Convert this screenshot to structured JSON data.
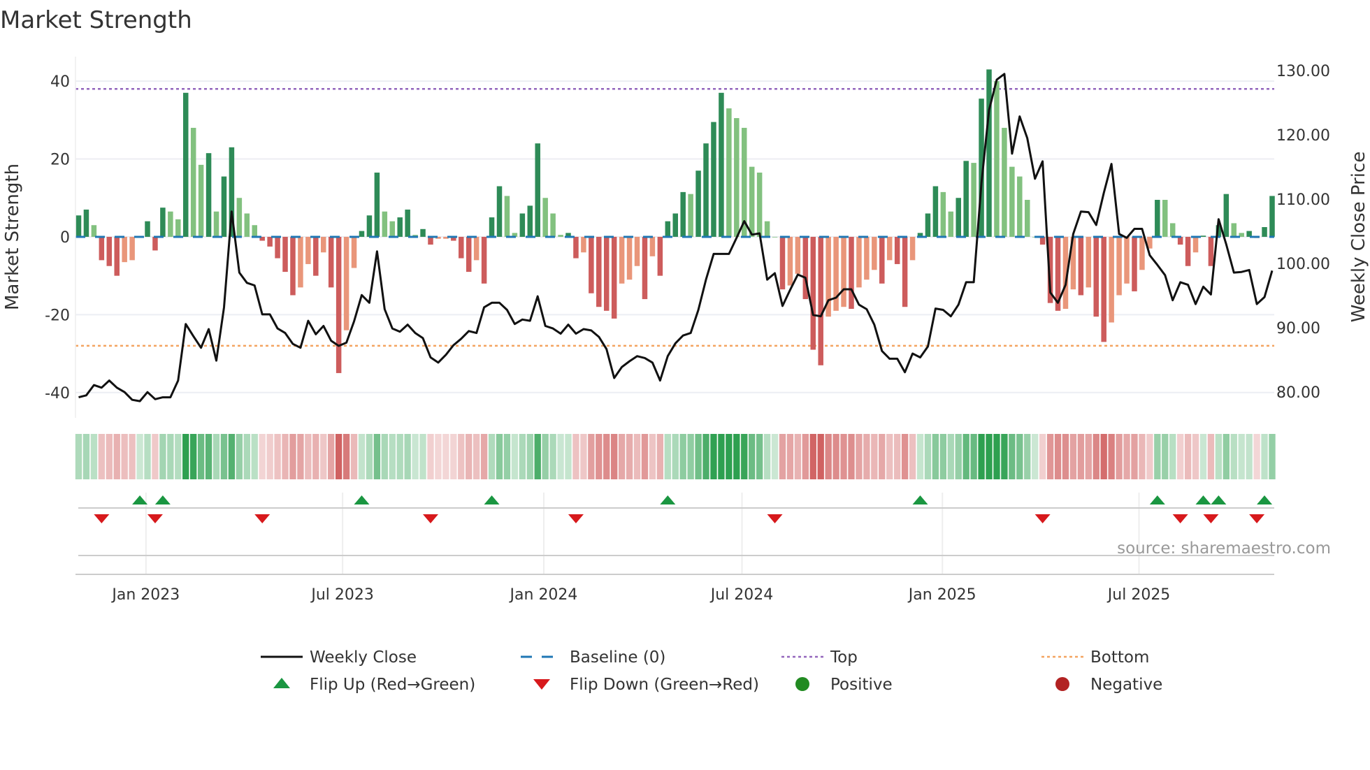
{
  "chart_data": {
    "type": "bar+line",
    "title": "Market Strength",
    "ylabel_left": "Market Strength",
    "ylabel_right": "Weekly Close Price",
    "left_ticks": [
      40,
      20,
      0,
      -20,
      -40
    ],
    "right_ticks": [
      "130.00",
      "120.00",
      "110.00",
      "100.00",
      "90.00",
      "80.00"
    ],
    "right_tick_values": [
      130,
      120,
      110,
      100,
      90,
      80
    ],
    "ylim_left": [
      -46.5,
      46.3
    ],
    "ylim_right": [
      76.0,
      132.2
    ],
    "x_ticks": [
      {
        "label": "Jan 2023",
        "week": 8.8
      },
      {
        "label": "Jul 2023",
        "week": 34.5
      },
      {
        "label": "Jan 2024",
        "week": 60.8
      },
      {
        "label": "Jul 2024",
        "week": 86.7
      },
      {
        "label": "Jan 2025",
        "week": 112.9
      },
      {
        "label": "Jul 2025",
        "week": 138.6
      }
    ],
    "top_level": 38,
    "bottom_level": -28,
    "baseline": 0,
    "strength": [
      5.5,
      7,
      3,
      -6,
      -7.5,
      -10,
      -6.5,
      -6,
      0,
      4,
      -3.5,
      7.5,
      6.5,
      4.5,
      37,
      28,
      18.5,
      21.5,
      6.5,
      15.5,
      23,
      10,
      6,
      3,
      -1,
      -2.5,
      -5.5,
      -9,
      -15,
      -13,
      -7,
      -10,
      -4,
      -13,
      -35,
      -24,
      -8,
      1.5,
      5.5,
      16.5,
      6.5,
      4,
      5,
      7,
      0.5,
      2,
      -2,
      -0.5,
      -0.5,
      -1,
      -5.5,
      -9,
      -6,
      -12,
      5,
      13,
      10.5,
      1,
      6,
      8,
      24,
      10,
      6,
      0.5,
      1,
      -5.5,
      -4,
      -14.5,
      -18,
      -19,
      -21,
      -12,
      -11,
      -7.5,
      -16,
      -5,
      -10,
      4,
      6,
      11.5,
      11,
      17,
      24,
      29.5,
      37,
      33,
      30.5,
      28,
      18,
      16.5,
      4,
      0,
      -13.5,
      -12.5,
      -9.5,
      -16,
      -29,
      -33,
      -20.5,
      -19,
      -18,
      -18.5,
      -13,
      -11,
      -8.5,
      -12,
      -6,
      -7,
      -18,
      -6,
      1,
      6,
      13,
      11.5,
      6.5,
      10,
      19.5,
      19,
      35.5,
      43,
      40,
      28,
      18,
      15.5,
      9.5,
      0,
      -2,
      -17,
      -19,
      -18.5,
      -13.5,
      -15,
      -13,
      -20.5,
      -27,
      -22,
      -15,
      -12,
      -14,
      -8.5,
      -3,
      9.5,
      9.5,
      3.5,
      -2,
      -7.5,
      -4,
      0.3,
      -7.5,
      3,
      11,
      3.5,
      1,
      1.5,
      -0.3,
      2.5,
      10.5
    ],
    "weekly_close": [
      79.2,
      79.5,
      81.1,
      80.7,
      81.8,
      80.7,
      80.0,
      78.8,
      78.6,
      80.0,
      78.9,
      79.2,
      79.2,
      81.8,
      90.6,
      88.7,
      86.9,
      89.8,
      84.9,
      93.2,
      108.1,
      98.6,
      97.0,
      96.6,
      92.1,
      92.1,
      89.9,
      89.2,
      87.5,
      86.9,
      91.1,
      89.0,
      90.3,
      88.0,
      87.2,
      87.7,
      91.0,
      95.1,
      93.9,
      101.9,
      92.9,
      89.9,
      89.4,
      90.5,
      89.2,
      88.4,
      85.4,
      84.6,
      85.8,
      87.3,
      88.3,
      89.5,
      89.2,
      93.2,
      93.9,
      93.9,
      92.8,
      90.6,
      91.3,
      91.1,
      94.9,
      90.3,
      89.9,
      89.1,
      90.5,
      89.1,
      89.8,
      89.6,
      88.6,
      86.7,
      82.2,
      83.9,
      84.8,
      85.6,
      85.3,
      84.6,
      81.8,
      85.6,
      87.6,
      88.8,
      89.2,
      92.8,
      97.5,
      101.5,
      101.5,
      101.5,
      104.0,
      106.6,
      104.5,
      104.7,
      97.5,
      98.5,
      93.4,
      95.9,
      98.3,
      97.8,
      92.0,
      91.8,
      94.3,
      94.7,
      96.0,
      96.0,
      93.6,
      92.9,
      90.5,
      86.4,
      85.2,
      85.2,
      83.1,
      86.0,
      85.4,
      87.1,
      93.0,
      92.8,
      91.8,
      93.6,
      97.1,
      97.1,
      112.5,
      123.9,
      128.6,
      129.5,
      117.1,
      122.9,
      119.5,
      113.2,
      115.9,
      95.5,
      93.9,
      96.7,
      104.6,
      108.1,
      108.0,
      106.0,
      111.0,
      115.5,
      104.6,
      104.0,
      105.4,
      105.4,
      101.3,
      99.8,
      98.2,
      94.3,
      97.1,
      96.7,
      93.7,
      96.4,
      95.2,
      106.9,
      103.0,
      98.6,
      98.7,
      99.0,
      93.7,
      94.8,
      98.9
    ],
    "flip_up_weeks": [
      8,
      11,
      37,
      54,
      77,
      110,
      141,
      147,
      149,
      155
    ],
    "flip_down_weeks": [
      3,
      10,
      24,
      46,
      65,
      91,
      126,
      144,
      148,
      154
    ],
    "legend": [
      {
        "label": "Weekly Close",
        "kind": "line"
      },
      {
        "label": "Baseline (0)",
        "kind": "dash"
      },
      {
        "label": "Top",
        "kind": "dot-top"
      },
      {
        "label": "Bottom",
        "kind": "dot-bottom"
      },
      {
        "label": "Flip Up (Red→Green)",
        "kind": "tri-up"
      },
      {
        "label": "Flip Down (Green→Red)",
        "kind": "tri-down"
      },
      {
        "label": "Positive",
        "kind": "circle-pos"
      },
      {
        "label": "Negative",
        "kind": "circle-neg"
      }
    ],
    "legend_placement": "bottom",
    "source": "source: sharemaestro.com"
  },
  "colors": {
    "pos_strong": "#2e8b57",
    "pos_weak": "#82c17f",
    "neg_strong": "#cd5c5c",
    "neg_weak": "#e9967a",
    "line": "#111111",
    "baseline": "#1f77b4",
    "top": "#9467bd",
    "bottom": "#f4a460",
    "flip_up": "#1a9641",
    "flip_down": "#d7191c",
    "positive": "#228b22",
    "negative": "#b22222"
  }
}
